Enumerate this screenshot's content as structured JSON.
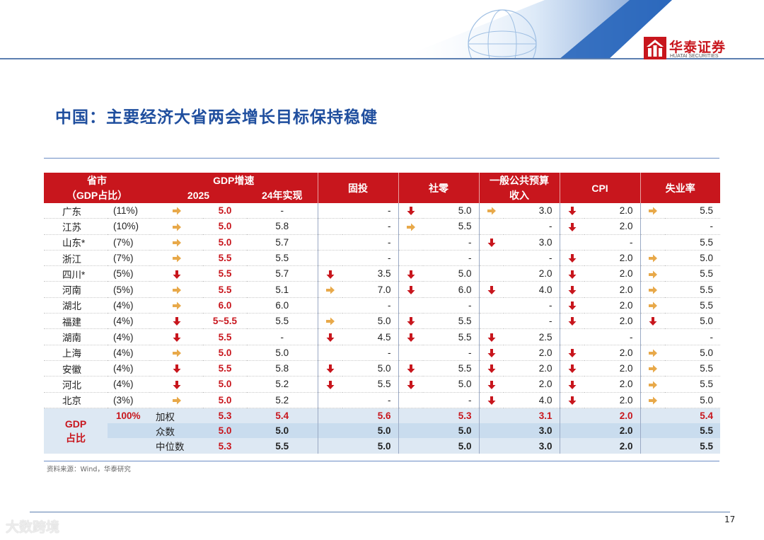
{
  "header": {
    "logo_cn": "华泰证券",
    "logo_en": "HUATAI SECURITIES"
  },
  "title": "中国：主要经济大省两会增长目标保持稳健",
  "colors": {
    "red": "#c8161d",
    "blue": "#1f4e9e",
    "arrow_up": "#e8a94a",
    "arrow_down": "#c8161d"
  },
  "table": {
    "headers": {
      "province_line1": "省市",
      "province_line2": "（GDP占比）",
      "gdp": "GDP增速",
      "gdp_2025": "2025",
      "gdp_2024": "24年实现",
      "investment": "固投",
      "retail": "社零",
      "budget": "一般公共预算收入",
      "cpi": "CPI",
      "unemployment": "失业率"
    },
    "rows": [
      {
        "province": "广东",
        "share": "(11%)",
        "gdp_arrow": "right",
        "gdp_2025": "5.0",
        "gdp_2024": "-",
        "inv_arrow": "",
        "inv": "-",
        "ret_arrow": "down",
        "ret": "5.0",
        "bud_arrow": "right",
        "bud": "3.0",
        "cpi_arrow": "down",
        "cpi": "2.0",
        "un_arrow": "right",
        "un": "5.5"
      },
      {
        "province": "江苏",
        "share": "(10%)",
        "gdp_arrow": "right",
        "gdp_2025": "5.0",
        "gdp_2024": "5.8",
        "inv_arrow": "",
        "inv": "-",
        "ret_arrow": "right",
        "ret": "5.5",
        "bud_arrow": "",
        "bud": "-",
        "cpi_arrow": "down",
        "cpi": "2.0",
        "un_arrow": "",
        "un": "-"
      },
      {
        "province": "山东*",
        "share": "(7%)",
        "gdp_arrow": "right",
        "gdp_2025": "5.0",
        "gdp_2024": "5.7",
        "inv_arrow": "",
        "inv": "-",
        "ret_arrow": "",
        "ret": "-",
        "bud_arrow": "down",
        "bud": "3.0",
        "cpi_arrow": "",
        "cpi": "-",
        "un_arrow": "",
        "un": "5.5"
      },
      {
        "province": "浙江",
        "share": "(7%)",
        "gdp_arrow": "right",
        "gdp_2025": "5.5",
        "gdp_2024": "5.5",
        "inv_arrow": "",
        "inv": "-",
        "ret_arrow": "",
        "ret": "-",
        "bud_arrow": "",
        "bud": "-",
        "cpi_arrow": "down",
        "cpi": "2.0",
        "un_arrow": "right",
        "un": "5.0"
      },
      {
        "province": "四川*",
        "share": "(5%)",
        "gdp_arrow": "down",
        "gdp_2025": "5.5",
        "gdp_2024": "5.7",
        "inv_arrow": "down",
        "inv": "3.5",
        "ret_arrow": "down",
        "ret": "5.0",
        "bud_arrow": "",
        "bud": "2.0",
        "cpi_arrow": "down",
        "cpi": "2.0",
        "un_arrow": "right",
        "un": "5.5"
      },
      {
        "province": "河南",
        "share": "(5%)",
        "gdp_arrow": "right",
        "gdp_2025": "5.5",
        "gdp_2024": "5.1",
        "inv_arrow": "right",
        "inv": "7.0",
        "ret_arrow": "down",
        "ret": "6.0",
        "bud_arrow": "down",
        "bud": "4.0",
        "cpi_arrow": "down",
        "cpi": "2.0",
        "un_arrow": "right",
        "un": "5.5"
      },
      {
        "province": "湖北",
        "share": "(4%)",
        "gdp_arrow": "right",
        "gdp_2025": "6.0",
        "gdp_2024": "6.0",
        "inv_arrow": "",
        "inv": "-",
        "ret_arrow": "",
        "ret": "-",
        "bud_arrow": "",
        "bud": "-",
        "cpi_arrow": "down",
        "cpi": "2.0",
        "un_arrow": "right",
        "un": "5.5"
      },
      {
        "province": "福建",
        "share": "(4%)",
        "gdp_arrow": "down",
        "gdp_2025": "5~5.5",
        "gdp_2024": "5.5",
        "inv_arrow": "right",
        "inv": "5.0",
        "ret_arrow": "down",
        "ret": "5.5",
        "bud_arrow": "",
        "bud": "-",
        "cpi_arrow": "down",
        "cpi": "2.0",
        "un_arrow": "down",
        "un": "5.0"
      },
      {
        "province": "湖南",
        "share": "(4%)",
        "gdp_arrow": "down",
        "gdp_2025": "5.5",
        "gdp_2024": "-",
        "inv_arrow": "down",
        "inv": "4.5",
        "ret_arrow": "down",
        "ret": "5.5",
        "bud_arrow": "down",
        "bud": "2.5",
        "cpi_arrow": "",
        "cpi": "-",
        "un_arrow": "",
        "un": "-"
      },
      {
        "province": "上海",
        "share": "(4%)",
        "gdp_arrow": "right",
        "gdp_2025": "5.0",
        "gdp_2024": "5.0",
        "inv_arrow": "",
        "inv": "-",
        "ret_arrow": "",
        "ret": "-",
        "bud_arrow": "down",
        "bud": "2.0",
        "cpi_arrow": "down",
        "cpi": "2.0",
        "un_arrow": "right",
        "un": "5.0"
      },
      {
        "province": "安徽",
        "share": "(4%)",
        "gdp_arrow": "down",
        "gdp_2025": "5.5",
        "gdp_2024": "5.8",
        "inv_arrow": "down",
        "inv": "5.0",
        "ret_arrow": "down",
        "ret": "5.5",
        "bud_arrow": "down",
        "bud": "2.0",
        "cpi_arrow": "down",
        "cpi": "2.0",
        "un_arrow": "right",
        "un": "5.5"
      },
      {
        "province": "河北",
        "share": "(4%)",
        "gdp_arrow": "down",
        "gdp_2025": "5.0",
        "gdp_2024": "5.2",
        "inv_arrow": "down",
        "inv": "5.5",
        "ret_arrow": "down",
        "ret": "5.0",
        "bud_arrow": "down",
        "bud": "2.0",
        "cpi_arrow": "down",
        "cpi": "2.0",
        "un_arrow": "right",
        "un": "5.5"
      },
      {
        "province": "北京",
        "share": "(3%)",
        "gdp_arrow": "right",
        "gdp_2025": "5.0",
        "gdp_2024": "5.2",
        "inv_arrow": "",
        "inv": "-",
        "ret_arrow": "",
        "ret": "-",
        "bud_arrow": "down",
        "bud": "4.0",
        "cpi_arrow": "down",
        "cpi": "2.0",
        "un_arrow": "right",
        "un": "5.0"
      }
    ],
    "summary": {
      "gdp_label_line1": "GDP",
      "gdp_label_line2": "占比",
      "share": "100%",
      "rows": [
        {
          "label": "加权",
          "gdp_2025": "5.3",
          "gdp_2024": "5.4",
          "inv": "5.6",
          "ret": "5.3",
          "bud": "3.1",
          "cpi": "2.0",
          "un": "5.4",
          "highlight": true
        },
        {
          "label": "众数",
          "gdp_2025": "5.0",
          "gdp_2024": "5.0",
          "inv": "5.0",
          "ret": "5.0",
          "bud": "3.0",
          "cpi": "2.0",
          "un": "5.5",
          "highlight": false
        },
        {
          "label": "中位数",
          "gdp_2025": "5.3",
          "gdp_2024": "5.5",
          "inv": "5.0",
          "ret": "5.0",
          "bud": "3.0",
          "cpi": "2.0",
          "un": "5.5",
          "highlight": false
        }
      ]
    }
  },
  "source": "资料来源：Wind，华泰研究",
  "page_number": "17",
  "watermark": "大数跨境"
}
